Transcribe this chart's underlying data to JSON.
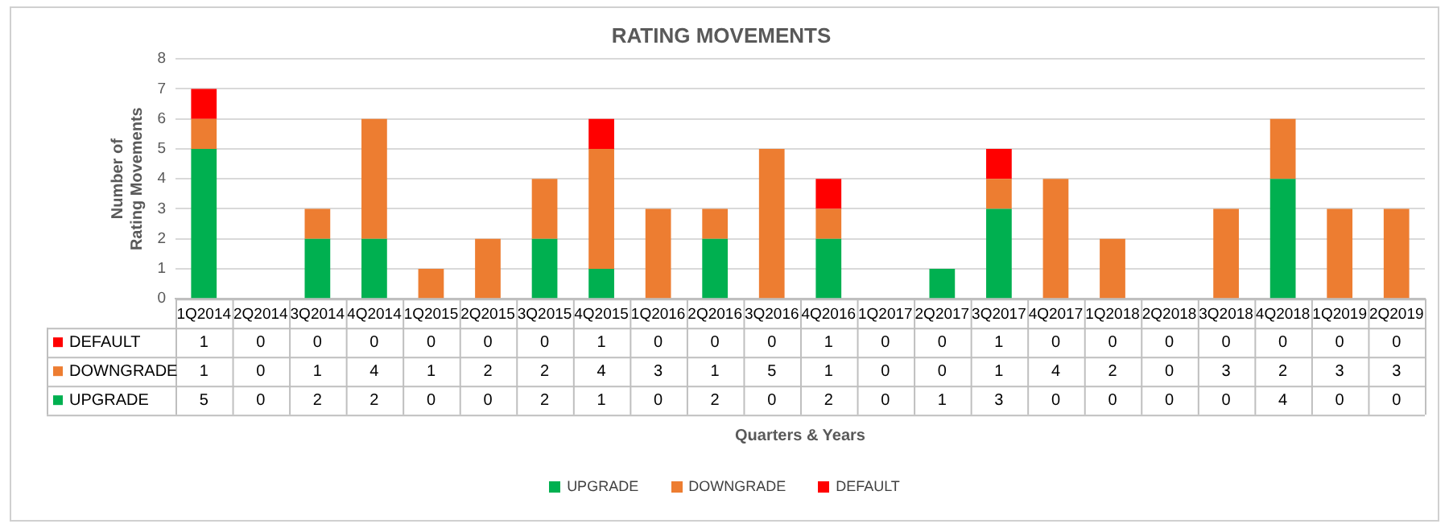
{
  "chart_data": {
    "type": "bar",
    "title": "RATING MOVEMENTS",
    "annotations": [
      "Quarters & Years"
    ],
    "ylabel": "Number of Rating Movements",
    "stacked": true,
    "data_labels": true,
    "grid": "y",
    "legend": "bottom",
    "ylim": [
      0,
      8
    ],
    "yticks": [
      0,
      1,
      2,
      3,
      4,
      5,
      6,
      7,
      8
    ],
    "categories": [
      "1Q2014",
      "2Q2014",
      "3Q2014",
      "4Q2014",
      "1Q2015",
      "2Q2015",
      "3Q2015",
      "4Q2015",
      "1Q2016",
      "2Q2016",
      "3Q2016",
      "4Q2016",
      "1Q2017",
      "2Q2017",
      "3Q2017",
      "4Q2017",
      "1Q2018",
      "2Q2018",
      "3Q2018",
      "4Q2018",
      "1Q2019",
      "2Q2019"
    ],
    "series": [
      {
        "name": "UPGRADE",
        "color": "#00b050",
        "values": [
          5,
          0,
          2,
          2,
          0,
          0,
          2,
          1,
          0,
          2,
          0,
          2,
          0,
          1,
          3,
          0,
          0,
          0,
          0,
          4,
          0,
          0
        ]
      },
      {
        "name": "DOWNGRADE",
        "color": "#ed7d31",
        "values": [
          1,
          0,
          1,
          4,
          1,
          2,
          2,
          4,
          3,
          1,
          5,
          1,
          0,
          0,
          1,
          4,
          2,
          0,
          3,
          2,
          3,
          3
        ]
      },
      {
        "name": "DEFAULT",
        "color": "#ff0000",
        "values": [
          1,
          0,
          0,
          0,
          0,
          0,
          0,
          1,
          0,
          0,
          0,
          1,
          0,
          0,
          1,
          0,
          0,
          0,
          0,
          0,
          0,
          0
        ]
      }
    ]
  }
}
